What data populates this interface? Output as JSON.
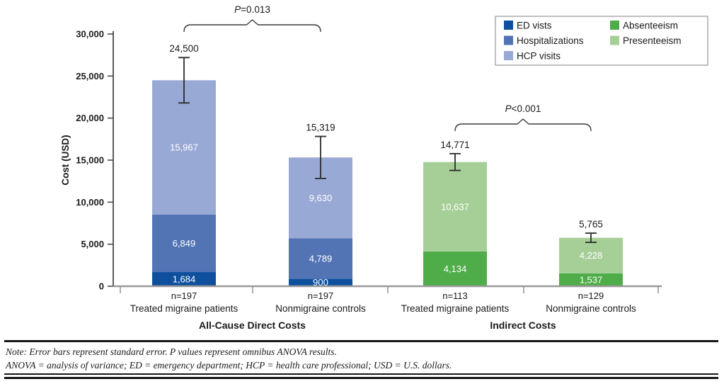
{
  "chart_data": {
    "type": "bar",
    "stacked": true,
    "ylabel": "Cost (USD)",
    "ylim": [
      0,
      30000
    ],
    "yticks": [
      0,
      5000,
      10000,
      15000,
      20000,
      25000,
      30000
    ],
    "grid": false,
    "legend_position": "top-right",
    "legend": [
      {
        "label": "ED vists",
        "color": "#0E509E"
      },
      {
        "label": "Hospitalizations",
        "color": "#5274B4"
      },
      {
        "label": "HCP visits",
        "color": "#99A9D5"
      },
      {
        "label": "Absenteeism",
        "color": "#4FAD49"
      },
      {
        "label": "Presenteeism",
        "color": "#A6CF98"
      }
    ],
    "groups": [
      {
        "label": "All-Cause Direct Costs",
        "pvalue": "P=0.013",
        "bars": [
          {
            "n_label": "n=197",
            "category": "Treated migraine patients",
            "total": 24500,
            "se": 2700,
            "segments": [
              {
                "name": "ED vists",
                "value": 1684
              },
              {
                "name": "Hospitalizations",
                "value": 6849
              },
              {
                "name": "HCP visits",
                "value": 15967
              }
            ]
          },
          {
            "n_label": "n=197",
            "category": "Nonmigraine controls",
            "total": 15319,
            "se": 2500,
            "segments": [
              {
                "name": "ED vists",
                "value": 900
              },
              {
                "name": "Hospitalizations",
                "value": 4789
              },
              {
                "name": "HCP visits",
                "value": 9630
              }
            ]
          }
        ]
      },
      {
        "label": "Indirect Costs",
        "pvalue": "P<0.001",
        "bars": [
          {
            "n_label": "n=113",
            "category": "Treated migraine patients",
            "total": 14771,
            "se": 1000,
            "segments": [
              {
                "name": "Absenteeism",
                "value": 4134
              },
              {
                "name": "Presenteeism",
                "value": 10637
              }
            ]
          },
          {
            "n_label": "n=129",
            "category": "Nonmigraine controls",
            "total": 5765,
            "se": 550,
            "segments": [
              {
                "name": "Absenteeism",
                "value": 1537
              },
              {
                "name": "Presenteeism",
                "value": 4228
              }
            ]
          }
        ]
      }
    ]
  },
  "footnotes": {
    "line1": "Note: Error bars represent standard error. P values represent omnibus ANOVA results.",
    "line2": "ANOVA = analysis of variance; ED = emergency department; HCP = health care professional; USD = U.S. dollars."
  },
  "colors": {
    "x_axis": "#999999",
    "y_axis": "#4a4a4a",
    "error_bar": "#2b2b2b",
    "brace": "#3c3c3c",
    "legend_border": "#808080"
  }
}
